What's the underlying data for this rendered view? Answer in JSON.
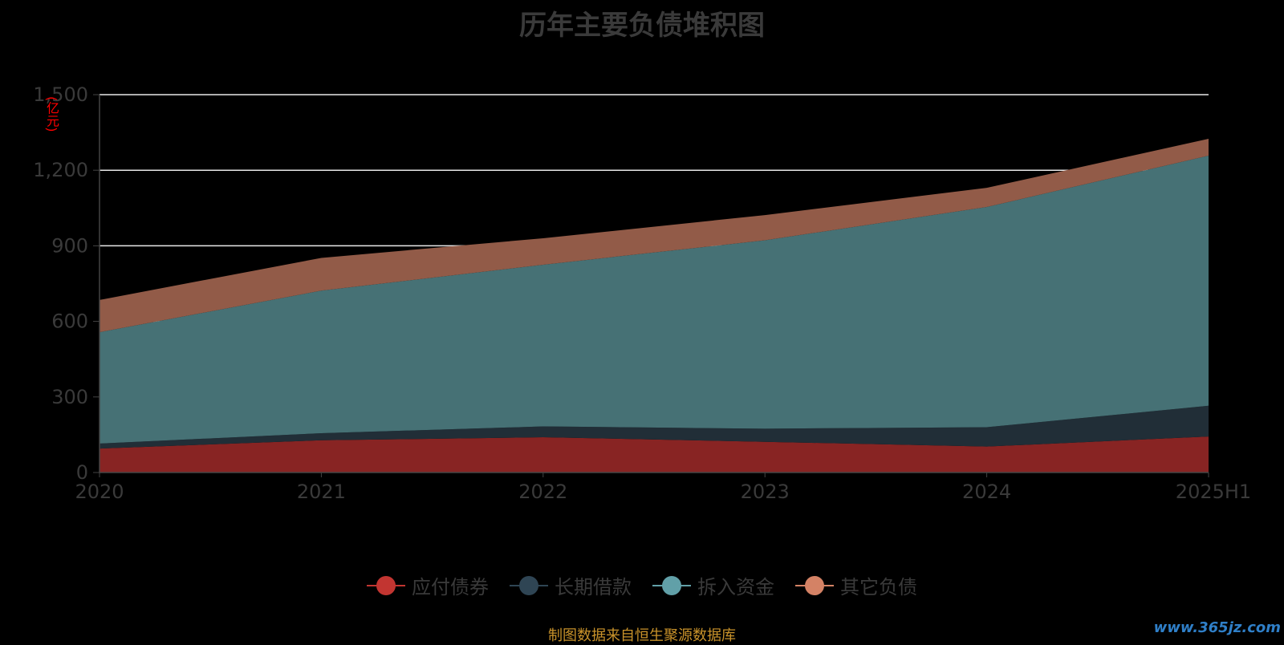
{
  "chart_data": {
    "type": "area",
    "stacked": true,
    "title": "历年主要负债堆积图",
    "unit_label": "(亿元)",
    "categories": [
      "2020",
      "2021",
      "2022",
      "2023",
      "2024",
      "2025H1"
    ],
    "y_ticks": [
      "0",
      "300",
      "600",
      "900",
      "1,200",
      "1,500"
    ],
    "ylim": [
      0,
      1500
    ],
    "grid": true,
    "legend_position": "bottom",
    "series": [
      {
        "name": "应付债券",
        "values": [
          95,
          128,
          140,
          122,
          103,
          143
        ],
        "color": "#c23531",
        "fill": "#882423"
      },
      {
        "name": "长期借款",
        "values": [
          20,
          28,
          43,
          52,
          77,
          122
        ],
        "color": "#2f4554",
        "fill": "#212e37"
      },
      {
        "name": "拆入资金",
        "values": [
          442,
          566,
          642,
          748,
          874,
          993
        ],
        "color": "#61a0a8",
        "fill": "#467175"
      },
      {
        "name": "其它负债",
        "values": [
          128,
          130,
          105,
          100,
          76,
          67
        ],
        "color": "#d48265",
        "fill": "#925b48"
      }
    ]
  },
  "source_text": "制图数据来自恒生聚源数据库",
  "watermark": "www.365jz.com"
}
